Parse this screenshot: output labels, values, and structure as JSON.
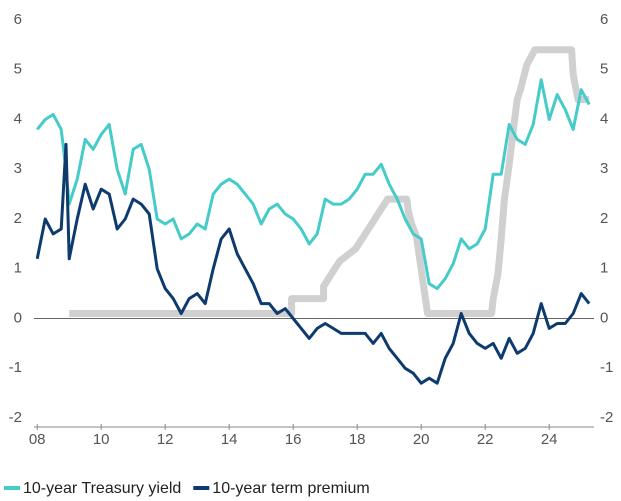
{
  "chart_data": {
    "type": "line",
    "xlim": [
      2007.9,
      2025.4
    ],
    "xticks": [
      {
        "value": 2008,
        "label": "08"
      },
      {
        "value": 2010,
        "label": "10"
      },
      {
        "value": 2012,
        "label": "12"
      },
      {
        "value": 2014,
        "label": "14"
      },
      {
        "value": 2016,
        "label": "16"
      },
      {
        "value": 2018,
        "label": "18"
      },
      {
        "value": 2020,
        "label": "20"
      },
      {
        "value": 2022,
        "label": "22"
      },
      {
        "value": 2024,
        "label": "24"
      }
    ],
    "ylim": [
      -2,
      6
    ],
    "yticks": [
      -2,
      -1,
      0,
      1,
      2,
      3,
      4,
      5,
      6
    ],
    "y2lim": [
      -2,
      6
    ],
    "y2ticks": [
      -2,
      -1,
      0,
      1,
      2,
      3,
      4,
      5,
      6
    ],
    "series": [
      {
        "color": "#d0d0d0",
        "x": [
          2009,
          2015.95,
          2015.95,
          2016.95,
          2016.95,
          2017.2,
          2017.45,
          2017.95,
          2018.2,
          2018.45,
          2018.7,
          2018.95,
          2019.55,
          2019.6,
          2019.7,
          2019.85,
          2020.2,
          2022.2,
          2022.25,
          2022.4,
          2022.5,
          2022.6,
          2022.75,
          2022.9,
          2023.0,
          2023.1,
          2023.3,
          2023.55,
          2024.7,
          2024.75,
          2024.9,
          2025.25
        ],
        "values": [
          0.1,
          0.1,
          0.4,
          0.4,
          0.65,
          0.9,
          1.15,
          1.4,
          1.65,
          1.9,
          2.15,
          2.4,
          2.4,
          2.15,
          1.9,
          1.65,
          0.1,
          0.1,
          0.4,
          0.9,
          1.6,
          2.4,
          3.1,
          3.9,
          4.4,
          4.6,
          5.1,
          5.4,
          5.4,
          4.9,
          4.4,
          4.4
        ]
      },
      {
        "name": "10-year Treasury yield",
        "color": "#45cbc8",
        "x": [
          2008.0,
          2008.25,
          2008.5,
          2008.75,
          2008.9,
          2009.0,
          2009.25,
          2009.5,
          2009.75,
          2010.0,
          2010.25,
          2010.5,
          2010.75,
          2011.0,
          2011.25,
          2011.5,
          2011.75,
          2012.0,
          2012.25,
          2012.5,
          2012.75,
          2013.0,
          2013.25,
          2013.5,
          2013.75,
          2014.0,
          2014.25,
          2014.5,
          2014.75,
          2015.0,
          2015.25,
          2015.5,
          2015.75,
          2016.0,
          2016.25,
          2016.5,
          2016.75,
          2017.0,
          2017.25,
          2017.5,
          2017.75,
          2018.0,
          2018.25,
          2018.5,
          2018.75,
          2019.0,
          2019.25,
          2019.5,
          2019.75,
          2020.0,
          2020.25,
          2020.5,
          2020.75,
          2021.0,
          2021.25,
          2021.5,
          2021.75,
          2022.0,
          2022.25,
          2022.5,
          2022.75,
          2023.0,
          2023.25,
          2023.5,
          2023.75,
          2024.0,
          2024.25,
          2024.5,
          2024.75,
          2025.0,
          2025.25
        ],
        "values": [
          3.8,
          4.0,
          4.1,
          3.8,
          3.0,
          2.3,
          2.8,
          3.6,
          3.4,
          3.7,
          3.9,
          3.0,
          2.5,
          3.4,
          3.5,
          3.0,
          2.0,
          1.9,
          2.0,
          1.6,
          1.7,
          1.9,
          1.8,
          2.5,
          2.7,
          2.8,
          2.7,
          2.5,
          2.3,
          1.9,
          2.2,
          2.3,
          2.1,
          2.0,
          1.8,
          1.5,
          1.7,
          2.4,
          2.3,
          2.3,
          2.4,
          2.6,
          2.9,
          2.9,
          3.1,
          2.7,
          2.4,
          2.0,
          1.7,
          1.6,
          0.7,
          0.6,
          0.8,
          1.1,
          1.6,
          1.4,
          1.5,
          1.8,
          2.9,
          2.9,
          3.9,
          3.6,
          3.5,
          3.9,
          4.8,
          4.0,
          4.5,
          4.2,
          3.8,
          4.6,
          4.3
        ]
      },
      {
        "name": "10-year term premium",
        "color": "#0d3b6e",
        "x": [
          2008.0,
          2008.25,
          2008.5,
          2008.75,
          2008.9,
          2009.0,
          2009.25,
          2009.5,
          2009.75,
          2010.0,
          2010.25,
          2010.5,
          2010.75,
          2011.0,
          2011.25,
          2011.5,
          2011.75,
          2012.0,
          2012.25,
          2012.5,
          2012.75,
          2013.0,
          2013.25,
          2013.5,
          2013.75,
          2014.0,
          2014.25,
          2014.5,
          2014.75,
          2015.0,
          2015.25,
          2015.5,
          2015.75,
          2016.0,
          2016.25,
          2016.5,
          2016.75,
          2017.0,
          2017.25,
          2017.5,
          2017.75,
          2018.0,
          2018.25,
          2018.5,
          2018.75,
          2019.0,
          2019.25,
          2019.5,
          2019.75,
          2020.0,
          2020.25,
          2020.5,
          2020.75,
          2021.0,
          2021.25,
          2021.5,
          2021.75,
          2022.0,
          2022.25,
          2022.5,
          2022.75,
          2023.0,
          2023.25,
          2023.5,
          2023.75,
          2024.0,
          2024.25,
          2024.5,
          2024.75,
          2025.0,
          2025.25
        ],
        "values": [
          1.2,
          2.0,
          1.7,
          1.8,
          3.5,
          1.2,
          2.0,
          2.7,
          2.2,
          2.6,
          2.5,
          1.8,
          2.0,
          2.4,
          2.3,
          2.1,
          1.0,
          0.6,
          0.4,
          0.1,
          0.4,
          0.5,
          0.3,
          1.0,
          1.6,
          1.8,
          1.3,
          1.0,
          0.7,
          0.3,
          0.3,
          0.1,
          0.2,
          0.0,
          -0.2,
          -0.4,
          -0.2,
          -0.1,
          -0.2,
          -0.3,
          -0.3,
          -0.3,
          -0.3,
          -0.5,
          -0.3,
          -0.6,
          -0.8,
          -1.0,
          -1.1,
          -1.3,
          -1.2,
          -1.3,
          -0.8,
          -0.5,
          0.1,
          -0.3,
          -0.5,
          -0.6,
          -0.5,
          -0.8,
          -0.4,
          -0.7,
          -0.6,
          -0.3,
          0.3,
          -0.2,
          -0.1,
          -0.1,
          0.1,
          0.5,
          0.3
        ]
      }
    ]
  }
}
